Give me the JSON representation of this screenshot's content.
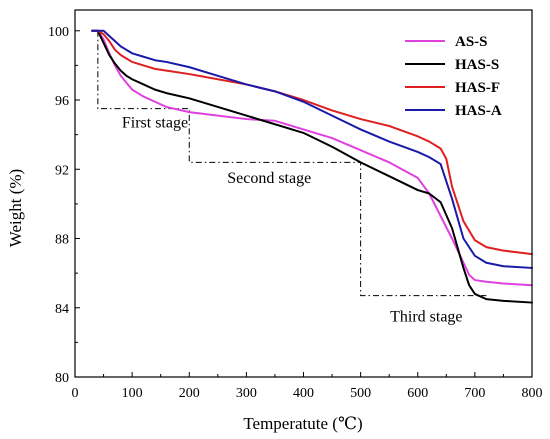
{
  "chart_data": {
    "type": "line",
    "xlabel": "Temperatute (℃)",
    "ylabel": "Weight (%)",
    "xlim": [
      0,
      800
    ],
    "ylim": [
      80,
      101.2
    ],
    "xticks": [
      0,
      100,
      200,
      300,
      400,
      500,
      600,
      700,
      800
    ],
    "yticks": [
      80,
      84,
      88,
      92,
      96,
      100
    ],
    "grid": false,
    "legend_position": "top-right",
    "series": [
      {
        "name": "AS-S",
        "color": "#e040e0",
        "x": [
          30,
          40,
          50,
          60,
          70,
          80,
          90,
          100,
          120,
          140,
          160,
          200,
          250,
          300,
          350,
          400,
          450,
          500,
          550,
          600,
          620,
          640,
          660,
          680,
          690,
          700,
          720,
          750,
          800
        ],
        "y": [
          100,
          100,
          99.5,
          98.7,
          98.0,
          97.4,
          97.0,
          96.6,
          96.2,
          95.9,
          95.6,
          95.3,
          95.1,
          94.9,
          94.8,
          94.3,
          93.8,
          93.1,
          92.4,
          91.5,
          90.6,
          89.3,
          88.0,
          86.6,
          85.9,
          85.6,
          85.5,
          85.4,
          85.3
        ]
      },
      {
        "name": "HAS-S",
        "color": "#000000",
        "x": [
          30,
          40,
          50,
          60,
          70,
          80,
          90,
          100,
          120,
          140,
          160,
          200,
          250,
          300,
          350,
          400,
          450,
          500,
          550,
          600,
          620,
          640,
          660,
          680,
          690,
          700,
          720,
          750,
          800
        ],
        "y": [
          100,
          100,
          99.3,
          98.6,
          98.1,
          97.7,
          97.4,
          97.2,
          96.9,
          96.6,
          96.4,
          96.1,
          95.6,
          95.1,
          94.6,
          94.1,
          93.3,
          92.4,
          91.6,
          90.8,
          90.6,
          90.1,
          88.6,
          86.3,
          85.3,
          84.8,
          84.5,
          84.4,
          84.3
        ]
      },
      {
        "name": "HAS-F",
        "color": "#e02020",
        "x": [
          30,
          40,
          50,
          60,
          70,
          80,
          90,
          100,
          120,
          140,
          160,
          200,
          250,
          300,
          350,
          400,
          450,
          500,
          550,
          600,
          620,
          640,
          650,
          660,
          680,
          700,
          720,
          750,
          800
        ],
        "y": [
          100,
          100,
          99.8,
          99.4,
          98.9,
          98.6,
          98.4,
          98.2,
          98.0,
          97.8,
          97.7,
          97.5,
          97.2,
          96.9,
          96.5,
          96.0,
          95.4,
          94.9,
          94.5,
          93.9,
          93.6,
          93.2,
          92.6,
          91.0,
          89.0,
          87.9,
          87.5,
          87.3,
          87.1
        ]
      },
      {
        "name": "HAS-A",
        "color": "#1a1aa8",
        "x": [
          30,
          40,
          50,
          60,
          70,
          80,
          90,
          100,
          120,
          140,
          160,
          200,
          250,
          300,
          350,
          400,
          450,
          500,
          550,
          600,
          620,
          640,
          660,
          680,
          700,
          720,
          750,
          800
        ],
        "y": [
          100,
          100,
          100,
          99.7,
          99.4,
          99.1,
          98.9,
          98.7,
          98.5,
          98.3,
          98.2,
          97.9,
          97.4,
          96.9,
          96.5,
          95.9,
          95.1,
          94.3,
          93.6,
          93.0,
          92.7,
          92.3,
          90.3,
          88.0,
          87.0,
          86.6,
          86.4,
          86.3
        ]
      }
    ],
    "stage_lines": [
      {
        "x": [
          40,
          40,
          200,
          200,
          500,
          500,
          720
        ],
        "y": [
          100,
          95.5,
          95.5,
          92.4,
          92.4,
          84.7,
          84.7
        ]
      }
    ],
    "annotations": [
      {
        "text": "First stage",
        "x": 140,
        "y": 94.7
      },
      {
        "text": "Second stage",
        "x": 340,
        "y": 91.5
      },
      {
        "text": "Third stage",
        "x": 615,
        "y": 83.5
      }
    ]
  }
}
